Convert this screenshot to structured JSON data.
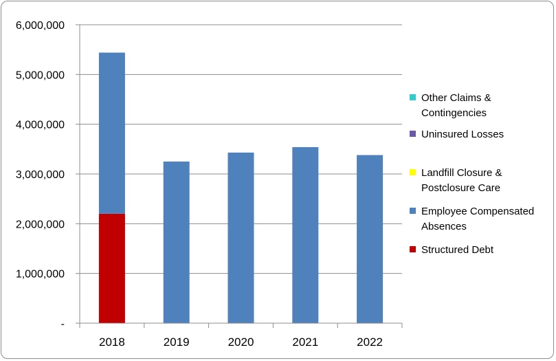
{
  "chart_data": {
    "type": "bar",
    "stacked": true,
    "categories": [
      "2018",
      "2019",
      "2020",
      "2021",
      "2022"
    ],
    "series": [
      {
        "name": "Structured Debt",
        "color": "#c00000",
        "values": [
          2200000,
          0,
          0,
          0,
          0
        ]
      },
      {
        "name": "Employee Compensated Absences",
        "color": "#4f81bd",
        "values": [
          3240000,
          3250000,
          3430000,
          3540000,
          3380000
        ]
      },
      {
        "name": "Landfill Closure & Postclosure Care",
        "color": "#ffff00",
        "values": [
          0,
          0,
          0,
          0,
          0
        ]
      },
      {
        "name": "Uninsured Losses",
        "color": "#6a5aa8",
        "values": [
          0,
          0,
          0,
          0,
          0
        ]
      },
      {
        "name": "Other Claims & Contingencies",
        "color": "#33cccc",
        "values": [
          0,
          0,
          0,
          0,
          0
        ]
      }
    ],
    "y_ticks": [
      "-",
      "1,000,000",
      "2,000,000",
      "3,000,000",
      "4,000,000",
      "5,000,000",
      "6,000,000"
    ],
    "ylim": [
      0,
      6000000
    ],
    "legend_position": "right",
    "grid": true
  }
}
